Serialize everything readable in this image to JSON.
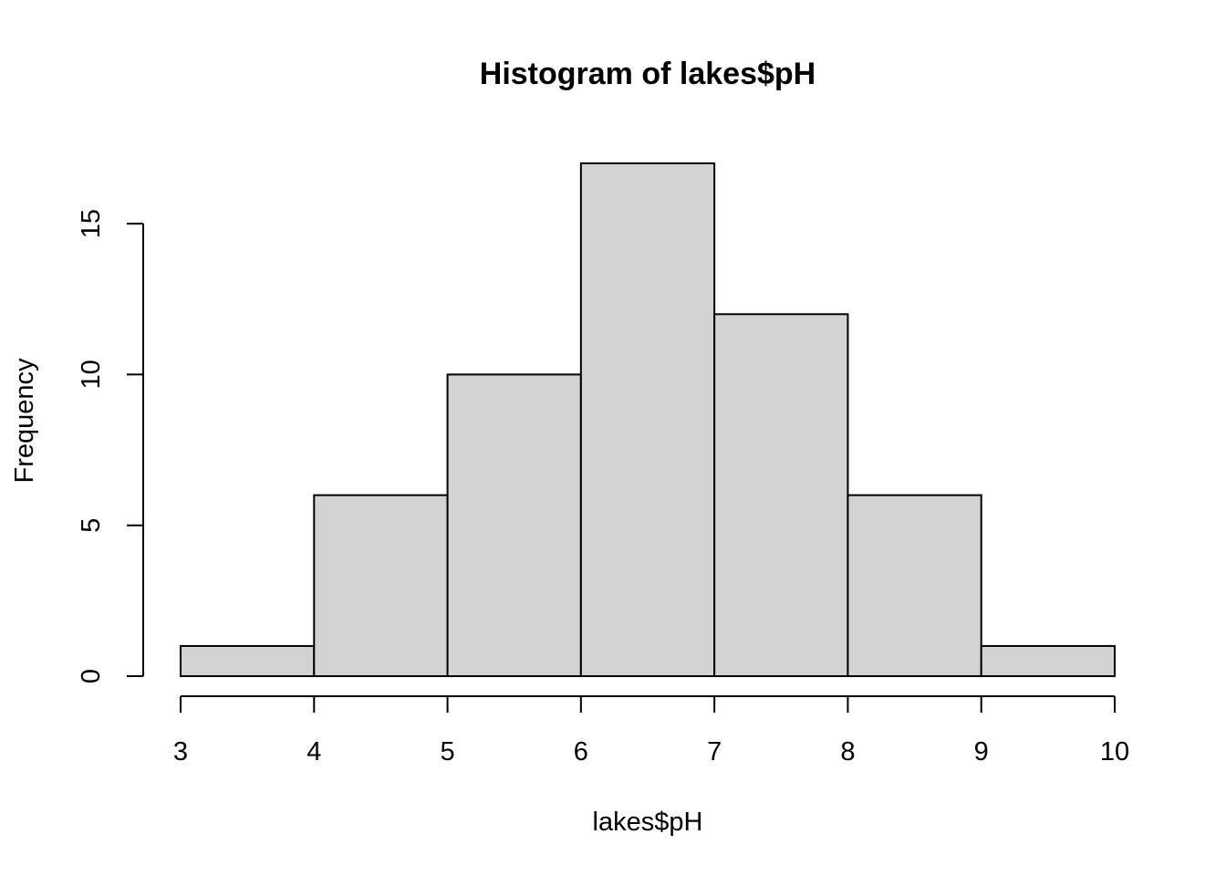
{
  "chart_data": {
    "type": "bar",
    "title": "Histogram of lakes$pH",
    "xlabel": "lakes$pH",
    "ylabel": "Frequency",
    "bins": [
      {
        "from": 3,
        "to": 4,
        "count": 1
      },
      {
        "from": 4,
        "to": 5,
        "count": 6
      },
      {
        "from": 5,
        "to": 6,
        "count": 10
      },
      {
        "from": 6,
        "to": 7,
        "count": 17
      },
      {
        "from": 7,
        "to": 8,
        "count": 12
      },
      {
        "from": 8,
        "to": 9,
        "count": 6
      },
      {
        "from": 9,
        "to": 10,
        "count": 1
      }
    ],
    "xlim": [
      3,
      10
    ],
    "ylim": [
      0,
      17
    ],
    "x_ticks": [
      "3",
      "4",
      "5",
      "6",
      "7",
      "8",
      "9",
      "10"
    ],
    "y_ticks": [
      "0",
      "5",
      "10",
      "15"
    ],
    "grid": false,
    "bar_color": "#d3d3d3",
    "border_color": "#000000"
  }
}
